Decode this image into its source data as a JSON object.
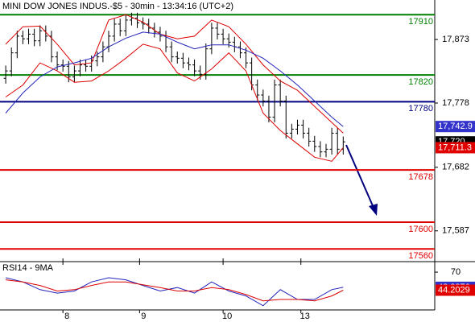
{
  "chart_data": [
    {
      "type": "ohlc",
      "title": "MINI DOW JONES INDUS.-$5 - 30min - 13:34:16 (UTC+2)",
      "bar_color": "#000000",
      "ohlc": {
        "open": [
          17815,
          17826,
          17853,
          17878,
          17874,
          17881,
          17871,
          17886,
          17878,
          17847,
          17835,
          17833,
          17817,
          17826,
          17835,
          17833,
          17841,
          17847,
          17862,
          17878,
          17896,
          17886,
          17902,
          17905,
          17898,
          17896,
          17890,
          17884,
          17878,
          17862,
          17847,
          17845,
          17838,
          17835,
          17826,
          17821,
          17859,
          17890,
          17881,
          17874,
          17869,
          17862,
          17853,
          17838,
          17805,
          17790,
          17781,
          17757,
          17805,
          17781,
          17733,
          17739,
          17745,
          17733,
          17721,
          17713,
          17705,
          17709,
          17733,
          17709
        ],
        "high": [
          17834,
          17861,
          17886,
          17886,
          17889,
          17889,
          17894,
          17894,
          17886,
          17855,
          17843,
          17841,
          17834,
          17843,
          17843,
          17849,
          17855,
          17870,
          17886,
          17904,
          17904,
          17910,
          17913,
          17913,
          17906,
          17904,
          17898,
          17892,
          17886,
          17870,
          17855,
          17853,
          17846,
          17843,
          17834,
          17867,
          17898,
          17898,
          17889,
          17882,
          17877,
          17870,
          17861,
          17846,
          17813,
          17798,
          17789,
          17813,
          17813,
          17789,
          17747,
          17753,
          17753,
          17741,
          17729,
          17721,
          17717,
          17741,
          17741,
          17728
        ],
        "low": [
          17807,
          17818,
          17845,
          17866,
          17866,
          17863,
          17863,
          17870,
          17839,
          17827,
          17825,
          17809,
          17809,
          17818,
          17825,
          17825,
          17833,
          17839,
          17854,
          17870,
          17878,
          17878,
          17894,
          17890,
          17888,
          17882,
          17876,
          17870,
          17854,
          17839,
          17837,
          17830,
          17827,
          17818,
          17813,
          17813,
          17851,
          17873,
          17866,
          17861,
          17854,
          17845,
          17830,
          17797,
          17782,
          17773,
          17749,
          17749,
          17773,
          17725,
          17725,
          17731,
          17725,
          17713,
          17705,
          17697,
          17697,
          17701,
          17701,
          17701
        ],
        "close": [
          17826,
          17853,
          17878,
          17874,
          17881,
          17871,
          17886,
          17878,
          17847,
          17835,
          17833,
          17817,
          17826,
          17835,
          17833,
          17841,
          17847,
          17862,
          17878,
          17896,
          17886,
          17902,
          17905,
          17898,
          17896,
          17890,
          17884,
          17878,
          17862,
          17847,
          17845,
          17838,
          17835,
          17826,
          17821,
          17859,
          17890,
          17881,
          17874,
          17869,
          17862,
          17853,
          17838,
          17805,
          17790,
          17781,
          17757,
          17805,
          17781,
          17733,
          17739,
          17745,
          17733,
          17721,
          17713,
          17705,
          17709,
          17733,
          17709,
          17720
        ]
      },
      "series": [
        {
          "color": "#dd0000",
          "x": [
            0,
            3,
            6,
            9,
            12,
            15,
            18,
            21,
            24,
            27,
            30,
            33,
            36,
            39,
            42,
            45,
            48,
            51,
            54,
            57,
            59
          ],
          "values": [
            17866,
            17892,
            17893,
            17866,
            17835,
            17838,
            17902,
            17910,
            17899,
            17881,
            17874,
            17878,
            17902,
            17892,
            17866,
            17835,
            17811,
            17797,
            17773,
            17749,
            17733
          ]
        },
        {
          "color": "#dd0000",
          "x": [
            0,
            3,
            6,
            9,
            12,
            15,
            18,
            21,
            24,
            27,
            30,
            33,
            36,
            39,
            42,
            45,
            48,
            51,
            54,
            57,
            59
          ],
          "values": [
            17787,
            17805,
            17838,
            17826,
            17809,
            17811,
            17826,
            17845,
            17866,
            17859,
            17823,
            17811,
            17829,
            17853,
            17826,
            17763,
            17737,
            17717,
            17697,
            17691,
            17711.3
          ]
        },
        {
          "color": "#2222bb",
          "x": [
            0,
            3,
            6,
            9,
            12,
            15,
            18,
            21,
            24,
            27,
            30,
            33,
            36,
            39,
            42,
            45,
            48,
            51,
            54,
            57,
            59
          ],
          "values": [
            17763,
            17793,
            17817,
            17832,
            17838,
            17845,
            17862,
            17875,
            17884,
            17881,
            17869,
            17859,
            17865,
            17865,
            17857,
            17845,
            17826,
            17805,
            17781,
            17757,
            17742.9
          ]
        }
      ],
      "levels": [
        {
          "value": 17910,
          "color": "#008000"
        },
        {
          "value": 17820,
          "color": "#008000"
        },
        {
          "value": 17780,
          "color": "#000080"
        },
        {
          "value": 17678,
          "color": "#e00000"
        },
        {
          "value": 17600,
          "color": "#e00000"
        },
        {
          "value": 17560,
          "color": "#e00000"
        }
      ],
      "price_labels": [
        {
          "value": 17742.9,
          "label": "17,742.9",
          "color": "#3333cc"
        },
        {
          "value": 17720,
          "label": "17,720",
          "color": "#000000"
        },
        {
          "value": 17711.3,
          "label": "17,711.3",
          "color": "#e00000"
        }
      ],
      "xlim": [
        -1,
        75
      ],
      "ylim": [
        17541,
        17932
      ],
      "yticks": [
        {
          "value": 17873,
          "label": "17,873"
        },
        {
          "value": 17778,
          "label": "17,778"
        },
        {
          "value": 17682,
          "label": "17,682"
        },
        {
          "value": 17587,
          "label": "17,587"
        }
      ]
    },
    {
      "type": "line",
      "title": "RSI14 - 9MA",
      "series": [
        {
          "color": "#2222bb",
          "x": [
            0,
            3,
            6,
            9,
            12,
            15,
            18,
            21,
            24,
            27,
            30,
            33,
            36,
            39,
            42,
            45,
            48,
            51,
            54,
            57,
            59
          ],
          "values": [
            62,
            56,
            45,
            40,
            43,
            56,
            62,
            59,
            51,
            43,
            48,
            40,
            56,
            43,
            36,
            22,
            45,
            31,
            31,
            45,
            48.3376
          ]
        },
        {
          "color": "#dd0000",
          "x": [
            0,
            3,
            6,
            9,
            12,
            15,
            18,
            21,
            24,
            27,
            30,
            33,
            36,
            39,
            42,
            45,
            48,
            51,
            54,
            57,
            59
          ],
          "values": [
            59,
            56,
            51,
            43,
            45,
            51,
            56,
            56,
            52,
            48,
            43,
            43,
            48,
            45,
            38,
            29,
            31,
            31,
            29,
            36,
            44.2029
          ]
        }
      ],
      "price_labels": [
        {
          "value": 48.3376,
          "label": "48.3376",
          "color": "#3333cc"
        },
        {
          "value": 44.2029,
          "label": "44.2029",
          "color": "#e00000"
        }
      ],
      "xlim": [
        -1,
        75
      ],
      "ylim": [
        16,
        85
      ],
      "yticks": [
        70
      ],
      "xticks": [
        {
          "value": 10,
          "label": "8"
        },
        {
          "value": 23.4,
          "label": "9"
        },
        {
          "value": 38,
          "label": "10"
        },
        {
          "value": 51.6,
          "label": "13"
        }
      ]
    }
  ]
}
